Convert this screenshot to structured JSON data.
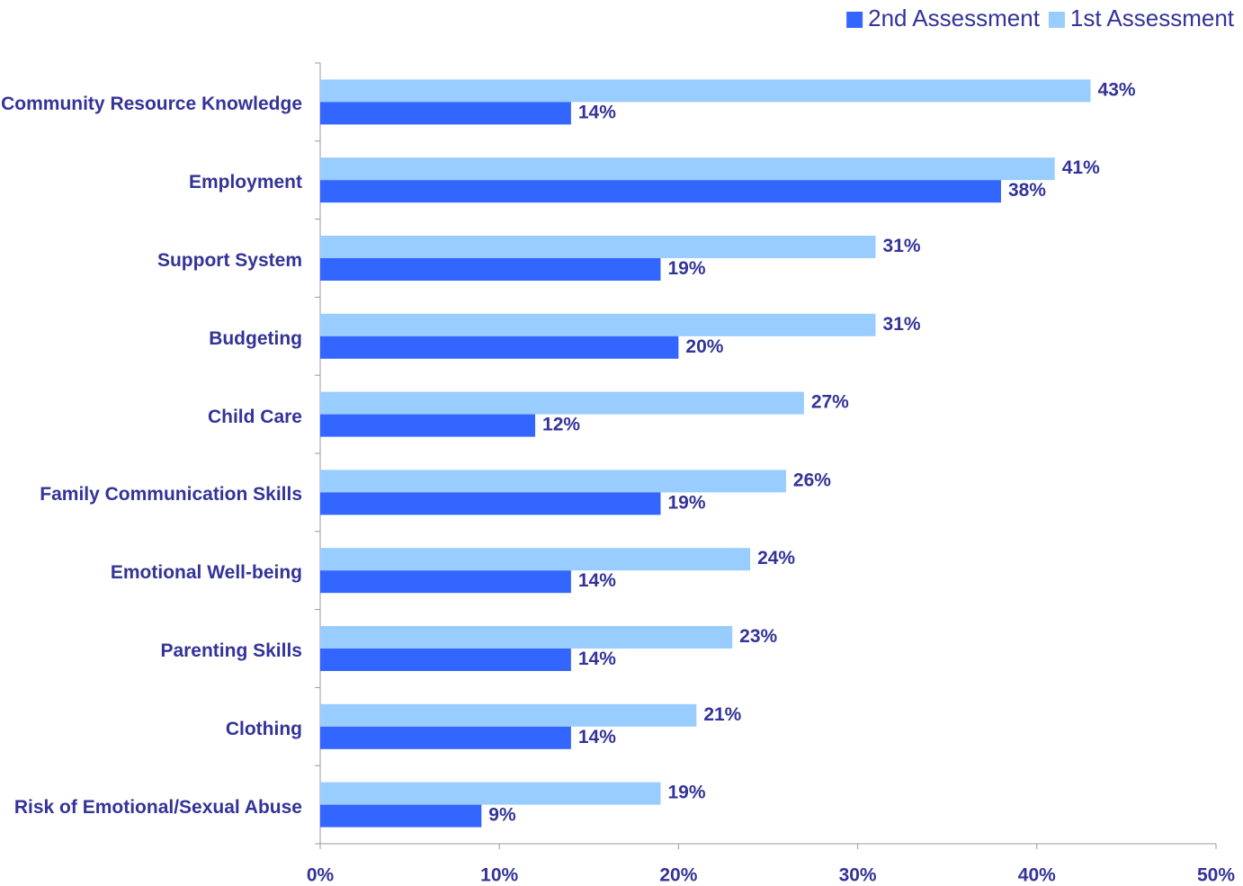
{
  "chart_data": {
    "type": "bar",
    "orientation": "horizontal",
    "categories": [
      "Community Resource Knowledge",
      "Employment",
      "Support System",
      "Budgeting",
      "Child Care",
      "Family Communication Skills",
      "Emotional Well-being",
      "Parenting Skills",
      "Clothing",
      "Risk of Emotional/Sexual Abuse"
    ],
    "series": [
      {
        "name": "2nd Assessment",
        "color": "#3366ff",
        "values": [
          14,
          38,
          19,
          20,
          12,
          19,
          14,
          14,
          14,
          9
        ],
        "value_labels": [
          "14%",
          "38%",
          "19%",
          "20%",
          "12%",
          "19%",
          "14%",
          "14%",
          "14%",
          "9%"
        ]
      },
      {
        "name": "1st Assessment",
        "color": "#99ccff",
        "values": [
          43,
          41,
          31,
          31,
          27,
          26,
          24,
          23,
          21,
          19
        ],
        "value_labels": [
          "43%",
          "41%",
          "31%",
          "31%",
          "27%",
          "26%",
          "24%",
          "23%",
          "21%",
          "19%"
        ]
      }
    ],
    "xlim": [
      0,
      50
    ],
    "xticks": [
      {
        "value": 0,
        "label": "0%"
      },
      {
        "value": 10,
        "label": "10%"
      },
      {
        "value": 20,
        "label": "20%"
      },
      {
        "value": 30,
        "label": "30%"
      },
      {
        "value": 40,
        "label": "40%"
      },
      {
        "value": 50,
        "label": "50%"
      }
    ],
    "legend": "top-right"
  }
}
